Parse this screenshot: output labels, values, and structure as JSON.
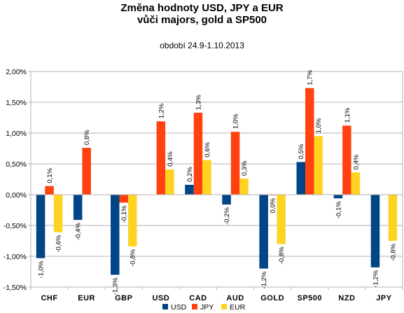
{
  "chart_data": {
    "type": "bar",
    "title_line1": "Změna hodnoty USD, JPY a EUR",
    "title_line2": "vůči majors, gold a SP500",
    "subtitle": "období 24.9-1.10.2013",
    "xlabel": "",
    "ylabel": "",
    "categories": [
      "CHF",
      "EUR",
      "GBP",
      "USD",
      "CAD",
      "AUD",
      "GOLD",
      "SP500",
      "NZD",
      "JPY"
    ],
    "ylim": [
      -1.5,
      2.0
    ],
    "yticks": [
      {
        "value": 2.0,
        "label": "2,00%"
      },
      {
        "value": 1.5,
        "label": "1,50%"
      },
      {
        "value": 1.0,
        "label": "1,00%"
      },
      {
        "value": 0.5,
        "label": "0,50%"
      },
      {
        "value": 0.0,
        "label": "0,00%"
      },
      {
        "value": -0.5,
        "label": "-0,50%"
      },
      {
        "value": -1.0,
        "label": "-1,00%"
      },
      {
        "value": -1.5,
        "label": "-1,50%"
      }
    ],
    "grid": true,
    "legend_position": "bottom",
    "series": [
      {
        "name": "USD",
        "color": "#004586",
        "values": [
          -1.03,
          -0.41,
          -1.3,
          null,
          0.16,
          -0.16,
          -1.2,
          0.53,
          -0.06,
          -1.18
        ],
        "labels": [
          "-1,0%",
          "-0,4%",
          "-1,3%",
          "",
          "0,2%",
          "-0,2%",
          "-1,2%",
          "0,5%",
          "-0,1%",
          "-1,2%"
        ]
      },
      {
        "name": "JPY",
        "color": "#ff420e",
        "values": [
          0.14,
          0.76,
          -0.13,
          1.19,
          1.33,
          1.02,
          -0.01,
          1.73,
          1.12,
          null
        ],
        "labels": [
          "0,1%",
          "0,8%",
          "-0,1%",
          "1,2%",
          "1,3%",
          "1,0%",
          "0,0%",
          "1,7%",
          "1,1%",
          ""
        ]
      },
      {
        "name": "EUR",
        "color": "#ffd320",
        "values": [
          -0.61,
          null,
          -0.84,
          0.41,
          0.56,
          0.26,
          -0.8,
          0.95,
          0.36,
          -0.75
        ],
        "labels": [
          "-0,6%",
          "",
          "-0,8%",
          "0,4%",
          "0,6%",
          "0,3%",
          "-0,8%",
          "1,0%",
          "0,4%",
          "-0,8%"
        ]
      }
    ]
  }
}
